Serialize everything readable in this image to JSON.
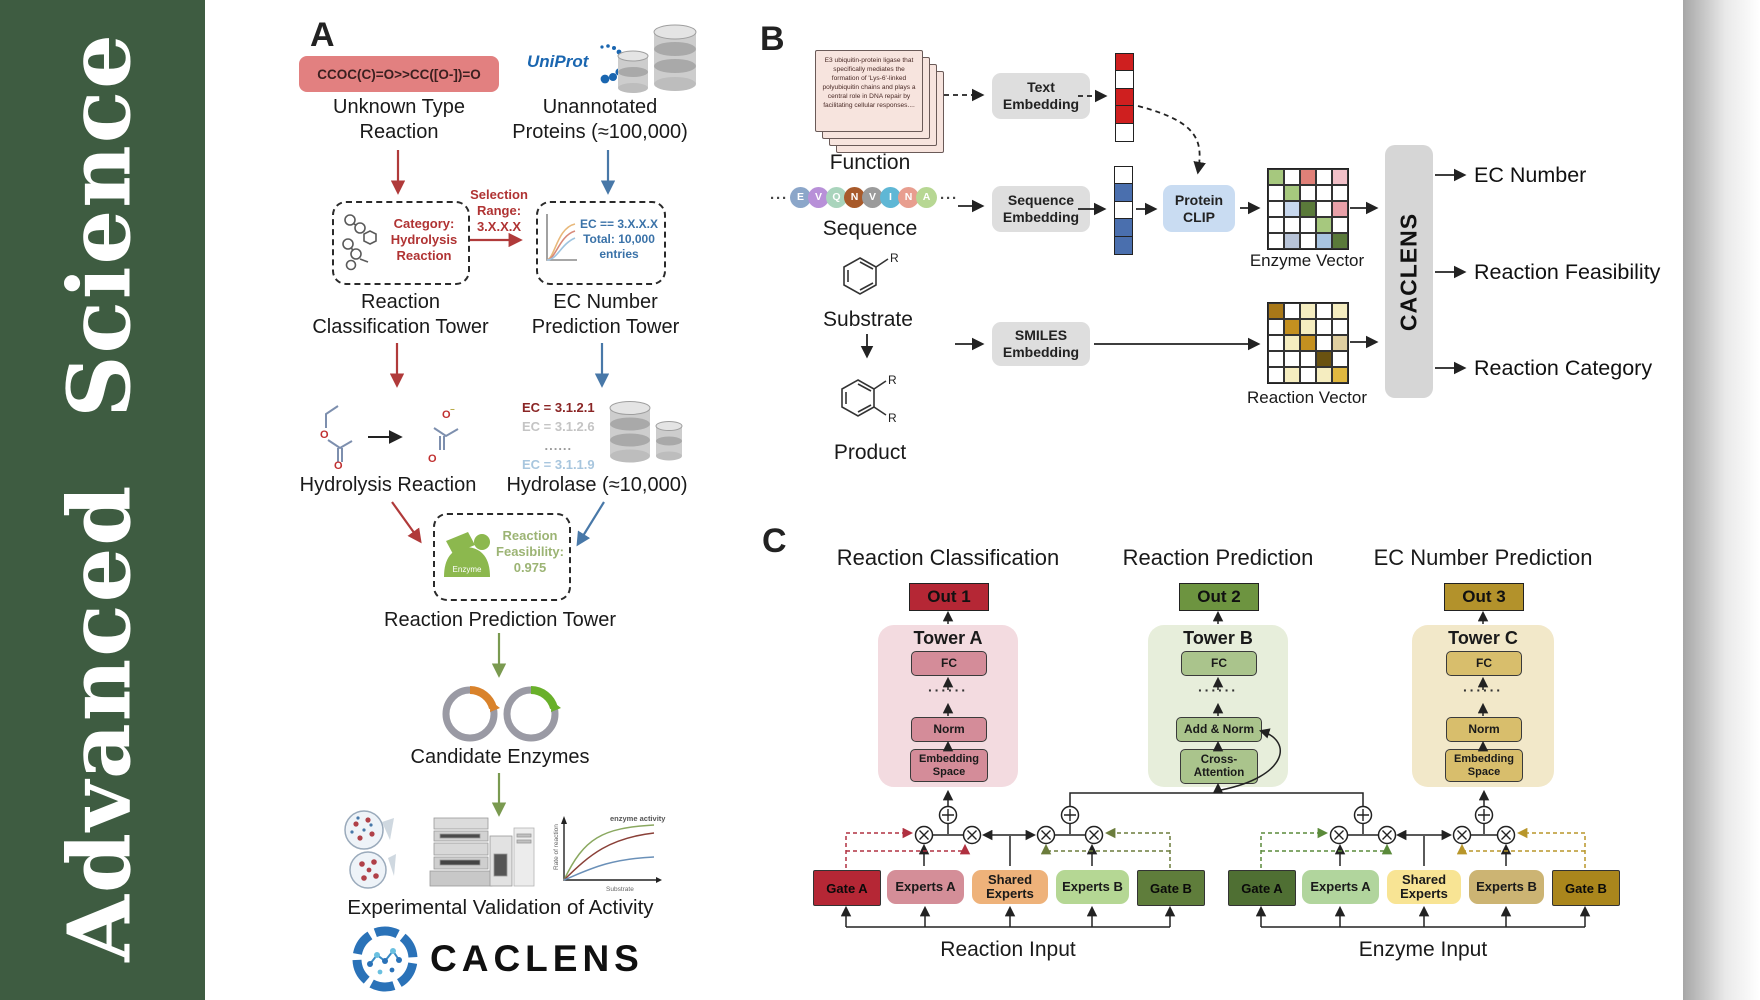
{
  "journal_banner": {
    "text": "Advanced Science",
    "bg_color": "#3e5c41"
  },
  "panel_a": {
    "label": "A",
    "smiles_box": "CCOC(C)=O>>CC([O-])=O",
    "unknown_reaction_label": "Unknown Type\nReaction",
    "uniprot_logo": "UniProt",
    "unannotated_label": "Unannotated\nProteins (≈100,000)",
    "category_box": "Category:\nHydrolysis\nReaction",
    "selection_label": "Selection\nRange:\n3.X.X.X",
    "ec_filter_box": "EC == 3.X.X.X\nTotal: 10,000\nentries",
    "classification_tower_label": "Reaction\nClassification Tower",
    "ec_tower_label": "EC Number\nPrediction Tower",
    "hydrolysis_label": "Hydrolysis Reaction",
    "ec_list": [
      "EC = 3.1.2.1",
      "EC = 3.1.2.6",
      "......",
      "EC = 3.1.1.9"
    ],
    "hydrolase_label": "Hydrolase (≈10,000)",
    "enzyme_icon_label": "Enzyme",
    "feasibility_box": "Reaction\nFeasibility:\n0.975",
    "prediction_tower_label": "Reaction Prediction Tower",
    "candidate_label": "Candidate Enzymes",
    "validation_label": "Experimental Validation of Activity",
    "logo_text": "CACLENS",
    "activity_plot": {
      "annotation": "enzyme activity",
      "ylabel": "Rate of reaction",
      "xlabel": "Substrate"
    }
  },
  "panel_b": {
    "label": "B",
    "function_card_text": "E3 ubiquitin-protein ligase that specifically mediates the formation of 'Lys-6'-linked polyubiquitin chains and plays a central role in DNA repair by facilitating cellular responses....",
    "function_label": "Function",
    "sequence_label": "Sequence",
    "ellipsis": "···",
    "sequence_residues": [
      {
        "letter": "E",
        "color": "#8ba6c9"
      },
      {
        "letter": "V",
        "color": "#b890d8"
      },
      {
        "letter": "Q",
        "color": "#a9d4bc"
      },
      {
        "letter": "N",
        "color": "#a85a2a"
      },
      {
        "letter": "V",
        "color": "#9b9b9b"
      },
      {
        "letter": "I",
        "color": "#5fb7d5"
      },
      {
        "letter": "N",
        "color": "#e89e8f"
      },
      {
        "letter": "A",
        "color": "#b7d793"
      }
    ],
    "substrate_label": "Substrate",
    "product_label": "Product",
    "r_group": "R",
    "text_embedding_box": "Text\nEmbedding",
    "sequence_embedding_box": "Sequence\nEmbedding",
    "smiles_embedding_box": "SMILES\nEmbedding",
    "protein_clip_box": "Protein\nCLIP",
    "text_vector_cells": [
      "#cf1f1f",
      "#ffffff",
      "#cf1f1f",
      "#cf1f1f",
      "#ffffff"
    ],
    "sequence_vector_cells": [
      "#ffffff",
      "#4a6fae",
      "#ffffff",
      "#4a6fae",
      "#4a6fae"
    ],
    "enzyme_matrix": [
      [
        "#a6c87e",
        "#ffffff",
        "#e08078",
        "#ffffff",
        "#f2c0c8"
      ],
      [
        "#ffffff",
        "#a6c87e",
        "#ffffff",
        "#ffffff",
        "#ffffff"
      ],
      [
        "#ffffff",
        "#c8d8ee",
        "#5a7a3a",
        "#ffffff",
        "#e8a0a8"
      ],
      [
        "#ffffff",
        "#ffffff",
        "#ffffff",
        "#a6c87e",
        "#ffffff"
      ],
      [
        "#ffffff",
        "#b8c4d8",
        "#ffffff",
        "#a8c4e0",
        "#5a7a3a"
      ]
    ],
    "reaction_matrix": [
      [
        "#a87818",
        "#ffffff",
        "#f5edc0",
        "#ffffff",
        "#f5edc0"
      ],
      [
        "#ffffff",
        "#c49020",
        "#f5edc0",
        "#ffffff",
        "#ffffff"
      ],
      [
        "#ffffff",
        "#f5edc0",
        "#c49020",
        "#ffffff",
        "#e0cfa0"
      ],
      [
        "#ffffff",
        "#ffffff",
        "#ffffff",
        "#6a5210",
        "#ffffff"
      ],
      [
        "#ffffff",
        "#f5edc0",
        "#ffffff",
        "#f5edc0",
        "#e0b840"
      ]
    ],
    "enzyme_vector_label": "Enzyme Vector",
    "reaction_vector_label": "Reaction Vector",
    "caclens_bar": "CACLENS",
    "outputs": [
      "EC Number",
      "Reaction Feasibility",
      "Reaction Category"
    ]
  },
  "panel_c": {
    "label": "C",
    "headings": [
      "Reaction Classification",
      "Reaction Prediction",
      "EC Number Prediction"
    ],
    "out_boxes": [
      {
        "text": "Out 1",
        "color": "#b52735"
      },
      {
        "text": "Out 2",
        "color": "#6d9440"
      },
      {
        "text": "Out 3",
        "color": "#b3922b"
      }
    ],
    "dots": "······",
    "towers": [
      {
        "name": "Tower A",
        "bg": "#f3dbe0",
        "block_bg": "#d48c99",
        "blocks": [
          "FC",
          "Norm",
          "Embedding\nSpace"
        ]
      },
      {
        "name": "Tower B",
        "bg": "#e7eedb",
        "block_bg": "#aac48c",
        "blocks": [
          "FC",
          "Add & Norm",
          "Cross-\nAttention"
        ]
      },
      {
        "name": "Tower C",
        "bg": "#f2e8c9",
        "block_bg": "#d8be6c",
        "blocks": [
          "FC",
          "Norm",
          "Embedding\nSpace"
        ]
      }
    ],
    "expert_groups": [
      {
        "input_label": "Reaction Input",
        "boxes": [
          {
            "text": "Gate A",
            "bg": "#b52735"
          },
          {
            "text": "Experts A",
            "bg": "#d48e98"
          },
          {
            "text": "Shared\nExperts",
            "bg": "#eeb27a"
          },
          {
            "text": "Experts B",
            "bg": "#b5d794"
          },
          {
            "text": "Gate B",
            "bg": "#5f7d3b"
          }
        ]
      },
      {
        "input_label": "Enzyme Input",
        "boxes": [
          {
            "text": "Gate A",
            "bg": "#4f6f33"
          },
          {
            "text": "Experts A",
            "bg": "#b1d59d"
          },
          {
            "text": "Shared\nExperts",
            "bg": "#f8e494"
          },
          {
            "text": "Experts B",
            "bg": "#ccb473"
          },
          {
            "text": "Gate B",
            "bg": "#aa861c"
          }
        ]
      }
    ]
  }
}
